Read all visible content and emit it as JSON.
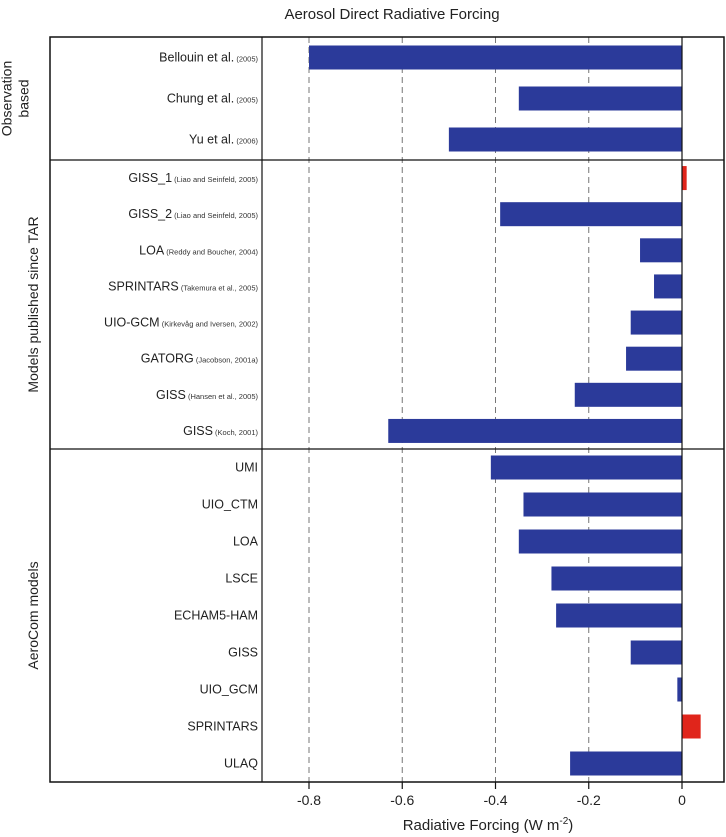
{
  "chart_data": {
    "type": "bar",
    "orientation": "horizontal",
    "title": "Aerosol Direct Radiative Forcing",
    "xlabel": "Radiative Forcing (W m-2)",
    "xlabel_parts": {
      "main": "Radiative Forcing  (W m",
      "sup": "-2",
      "tail": ")"
    },
    "xlim": [
      -0.9,
      0.05
    ],
    "xticks": [
      -0.8,
      -0.6,
      -0.4,
      -0.2,
      0
    ],
    "xtick_labels": [
      "-0.8",
      "-0.6",
      "-0.4",
      "-0.2",
      "0"
    ],
    "grid": "dashed vertical lines at x ticks",
    "colors": {
      "negative": "#2b3a9a",
      "positive": "#e0251b"
    },
    "groups": [
      {
        "name": "Observation based",
        "name_lines": [
          "Observation",
          "based"
        ],
        "items": [
          {
            "label": "Bellouin et al.",
            "cite": "(2005)",
            "value": -0.8
          },
          {
            "label": "Chung et al.",
            "cite": "(2005)",
            "value": -0.35
          },
          {
            "label": "Yu et al.",
            "cite": "(2006)",
            "value": -0.5
          }
        ]
      },
      {
        "name": "Models published since TAR",
        "name_lines": [
          "Models published since TAR"
        ],
        "items": [
          {
            "label": "GISS_1",
            "cite": "(Liao and Seinfeld, 2005)",
            "value": 0.01
          },
          {
            "label": "GISS_2",
            "cite": "(Liao and Seinfeld, 2005)",
            "value": -0.39
          },
          {
            "label": "LOA",
            "cite": "(Reddy and Boucher, 2004)",
            "value": -0.09
          },
          {
            "label": "SPRINTARS",
            "cite": "(Takemura et al., 2005)",
            "value": -0.06
          },
          {
            "label": "UIO-GCM",
            "cite": "(Kirkevåg and Iversen, 2002)",
            "value": -0.11
          },
          {
            "label": "GATORG",
            "cite": "(Jacobson, 2001a)",
            "value": -0.12
          },
          {
            "label": "GISS",
            "cite": "(Hansen et al., 2005)",
            "value": -0.23
          },
          {
            "label": "GISS",
            "cite": "(Koch, 2001)",
            "value": -0.63
          }
        ]
      },
      {
        "name": "AeroCom models",
        "name_lines": [
          "AeroCom models"
        ],
        "items": [
          {
            "label": "UMI",
            "cite": "",
            "value": -0.41
          },
          {
            "label": "UIO_CTM",
            "cite": "",
            "value": -0.34
          },
          {
            "label": "LOA",
            "cite": "",
            "value": -0.35
          },
          {
            "label": "LSCE",
            "cite": "",
            "value": -0.28
          },
          {
            "label": "ECHAM5-HAM",
            "cite": "",
            "value": -0.27
          },
          {
            "label": "GISS",
            "cite": "",
            "value": -0.11
          },
          {
            "label": "UIO_GCM",
            "cite": "",
            "value": -0.01
          },
          {
            "label": "SPRINTARS",
            "cite": "",
            "value": 0.04
          },
          {
            "label": "ULAQ",
            "cite": "",
            "value": -0.24
          }
        ]
      }
    ]
  }
}
